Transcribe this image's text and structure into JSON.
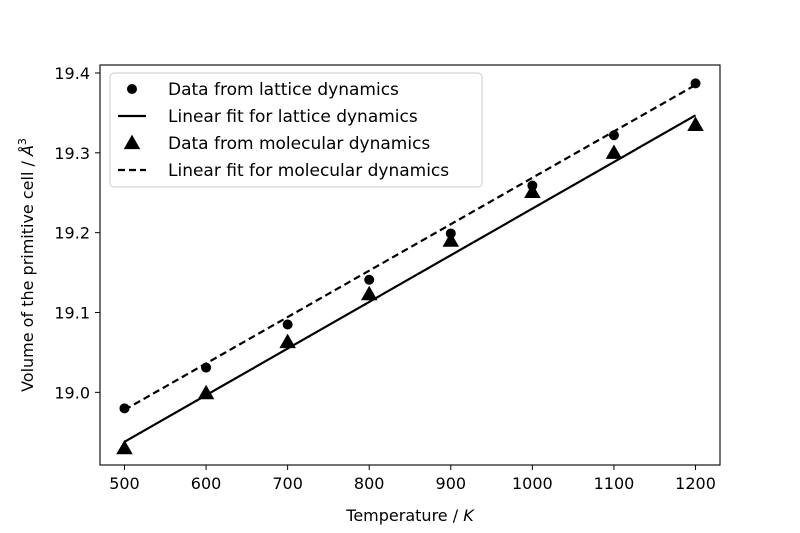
{
  "chart_data": {
    "type": "line",
    "title": "",
    "xlabel": "Temperature / K",
    "xlabel_text": "Temperature / ",
    "xlabel_var": "K",
    "ylabel": "Volume of the primitive cell / Å³",
    "ylabel_text": "Volume of the primitive cell / ",
    "ylabel_unit": "Å",
    "ylabel_exp": "3",
    "xlim": [
      470,
      1230
    ],
    "ylim": [
      18.909,
      19.41
    ],
    "xticks": [
      500,
      600,
      700,
      800,
      900,
      1000,
      1100,
      1200
    ],
    "xtick_labels": [
      "500",
      "600",
      "700",
      "800",
      "900",
      "1000",
      "1100",
      "1200"
    ],
    "yticks": [
      19.0,
      19.1,
      19.2,
      19.3,
      19.4
    ],
    "ytick_labels": [
      "19.0",
      "19.1",
      "19.2",
      "19.3",
      "19.4"
    ],
    "grid": false,
    "legend_position": "top-left",
    "series": [
      {
        "name": "Data from lattice dynamics",
        "kind": "scatter",
        "marker": "circle",
        "x": [
          500,
          600,
          700,
          800,
          900,
          1000,
          1100,
          1200
        ],
        "y": [
          18.98,
          19.031,
          19.085,
          19.141,
          19.199,
          19.259,
          19.322,
          19.387
        ]
      },
      {
        "name": "Linear fit for lattice dynamics",
        "kind": "line",
        "style": "solid",
        "x": [
          500,
          1200
        ],
        "y": [
          18.938,
          19.347
        ]
      },
      {
        "name": "Data from molecular dynamics",
        "kind": "scatter",
        "marker": "triangle",
        "x": [
          500,
          600,
          700,
          800,
          900,
          1000,
          1100,
          1200
        ],
        "y": [
          18.93,
          18.999,
          19.063,
          19.123,
          19.19,
          19.251,
          19.3,
          19.335
        ]
      },
      {
        "name": "Linear fit for molecular dynamics",
        "kind": "line",
        "style": "dashed",
        "x": [
          500,
          1200
        ],
        "y": [
          18.978,
          19.385
        ]
      }
    ]
  }
}
